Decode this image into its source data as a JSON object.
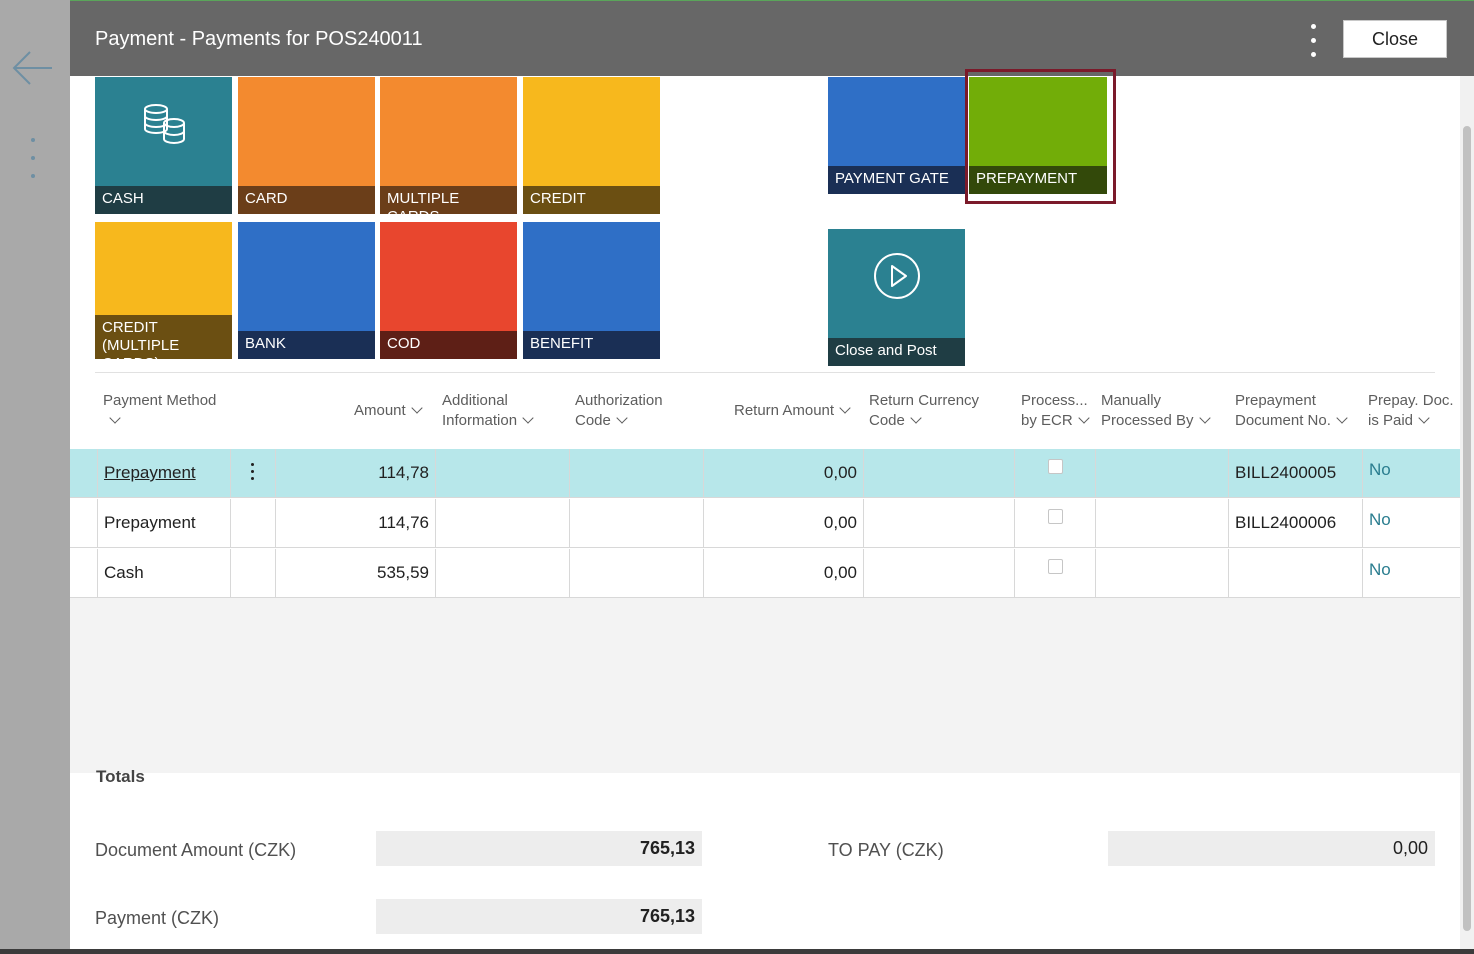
{
  "header": {
    "title": "Payment - Payments for POS240011",
    "close_label": "Close"
  },
  "tiles": {
    "cash": "CASH",
    "card": "CARD",
    "multiple_cards": "MULTIPLE CARDS",
    "credit": "CREDIT",
    "credit_multiple": "CREDIT (MULTIPLE CARDS)",
    "bank": "BANK",
    "cod": "COD",
    "benefit": "BENEFIT",
    "payment_gate": "PAYMENT GATE",
    "prepayment": "PREPAYMENT",
    "close_and_post": "Close and Post"
  },
  "table": {
    "columns": {
      "payment_method": "Payment Method",
      "amount": "Amount",
      "additional_info_1": "Additional",
      "additional_info_2": "Information",
      "auth_code_1": "Authorization",
      "auth_code_2": "Code",
      "return_amount": "Return Amount",
      "return_currency_1": "Return Currency",
      "return_currency_2": "Code",
      "processed_ecr_1": "Process...",
      "processed_ecr_2": "by ECR",
      "manually_1": "Manually",
      "manually_2": "Processed By",
      "prepay_doc_1": "Prepayment",
      "prepay_doc_2": "Document No.",
      "prepay_paid_1": "Prepay. Doc.",
      "prepay_paid_2": "is Paid"
    },
    "rows": [
      {
        "method": "Prepayment",
        "amount": "114,78",
        "return_amount": "0,00",
        "prepay_doc": "BILL2400005",
        "is_paid": "No",
        "selected": true
      },
      {
        "method": "Prepayment",
        "amount": "114,76",
        "return_amount": "0,00",
        "prepay_doc": "BILL2400006",
        "is_paid": "No",
        "selected": false
      },
      {
        "method": "Cash",
        "amount": "535,59",
        "return_amount": "0,00",
        "prepay_doc": "",
        "is_paid": "No",
        "selected": false
      }
    ]
  },
  "totals": {
    "title": "Totals",
    "document_amount_label": "Document Amount (CZK)",
    "document_amount_value": "765,13",
    "to_pay_label": "TO PAY (CZK)",
    "to_pay_value": "0,00",
    "payment_label": "Payment (CZK)",
    "payment_value": "765,13"
  },
  "colors": {
    "header_bg": "#676767",
    "selected_row": "#b7e7ea",
    "highlight_frame": "#7b1a2a"
  }
}
